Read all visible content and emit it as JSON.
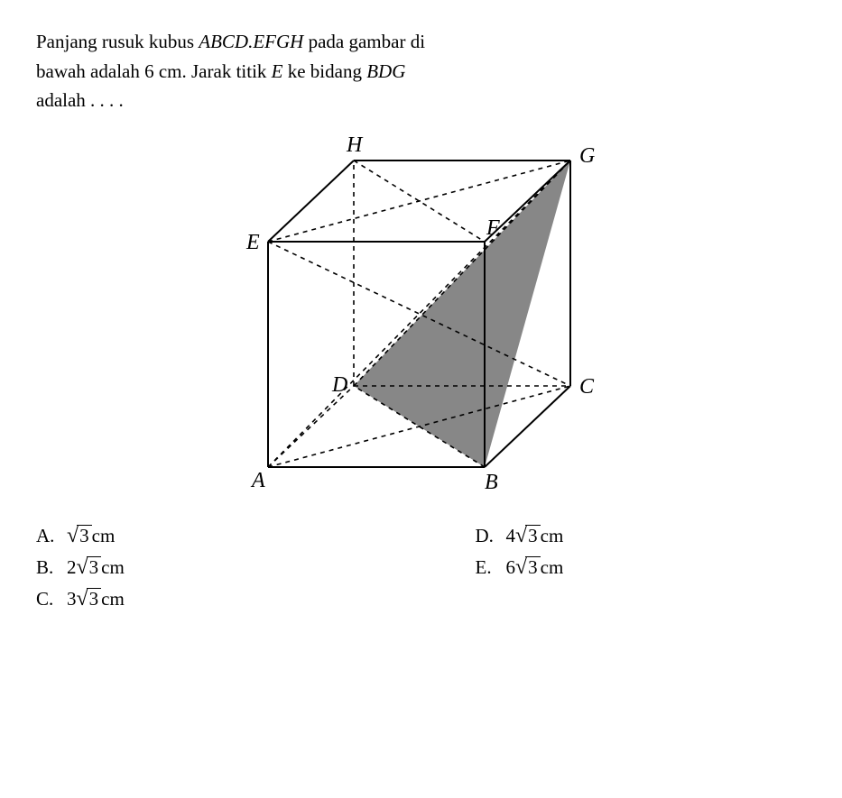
{
  "question": {
    "line1_a": "Panjang rusuk kubus ",
    "cube": "ABCD.EFGH",
    "line1_b": " pada gambar di",
    "line2_a": "bawah adalah 6 cm. Jarak titik ",
    "pointE": "E",
    "line2_b": " ke bidang ",
    "plane": "BDG",
    "line3": "adalah . . . ."
  },
  "figure": {
    "labels": {
      "A": "A",
      "B": "B",
      "C": "C",
      "D": "D",
      "E": "E",
      "F": "F",
      "G": "G",
      "H": "H"
    },
    "label_fontsize": 24,
    "label_style": "italic",
    "stroke": "#000000",
    "dash": "5,5",
    "solid_width": 2.0,
    "dash_width": 1.6,
    "shade_fill": "#7a7a7a",
    "shade_opacity": 0.9,
    "coords": {
      "A": [
        60,
        380
      ],
      "B": [
        300,
        380
      ],
      "D": [
        155,
        290
      ],
      "C": [
        395,
        290
      ],
      "E": [
        60,
        130
      ],
      "F": [
        300,
        130
      ],
      "H": [
        155,
        40
      ],
      "G": [
        395,
        40
      ]
    },
    "solid_edges": [
      [
        "A",
        "B"
      ],
      [
        "B",
        "C"
      ],
      [
        "C",
        "G"
      ],
      [
        "G",
        "F"
      ],
      [
        "F",
        "E"
      ],
      [
        "E",
        "A"
      ],
      [
        "E",
        "H"
      ],
      [
        "H",
        "G"
      ],
      [
        "B",
        "F"
      ]
    ],
    "dashed_edges": [
      [
        "A",
        "D"
      ],
      [
        "D",
        "C"
      ],
      [
        "D",
        "H"
      ]
    ],
    "dashed_diagonals": [
      [
        "E",
        "G"
      ],
      [
        "A",
        "C"
      ],
      [
        "E",
        "C"
      ],
      [
        "A",
        "G"
      ],
      [
        "B",
        "D"
      ],
      [
        "D",
        "G"
      ],
      [
        "H",
        "F"
      ]
    ],
    "shaded_triangle": [
      "B",
      "D",
      "G"
    ]
  },
  "options": {
    "A": {
      "coef": "",
      "rad": "3",
      "unit": " cm"
    },
    "B": {
      "coef": "2",
      "rad": "3",
      "unit": " cm"
    },
    "C": {
      "coef": "3",
      "rad": "3",
      "unit": " cm"
    },
    "D": {
      "coef": "4",
      "rad": "3",
      "unit": " cm"
    },
    "E": {
      "coef": "6",
      "rad": "3",
      "unit": " cm"
    }
  }
}
